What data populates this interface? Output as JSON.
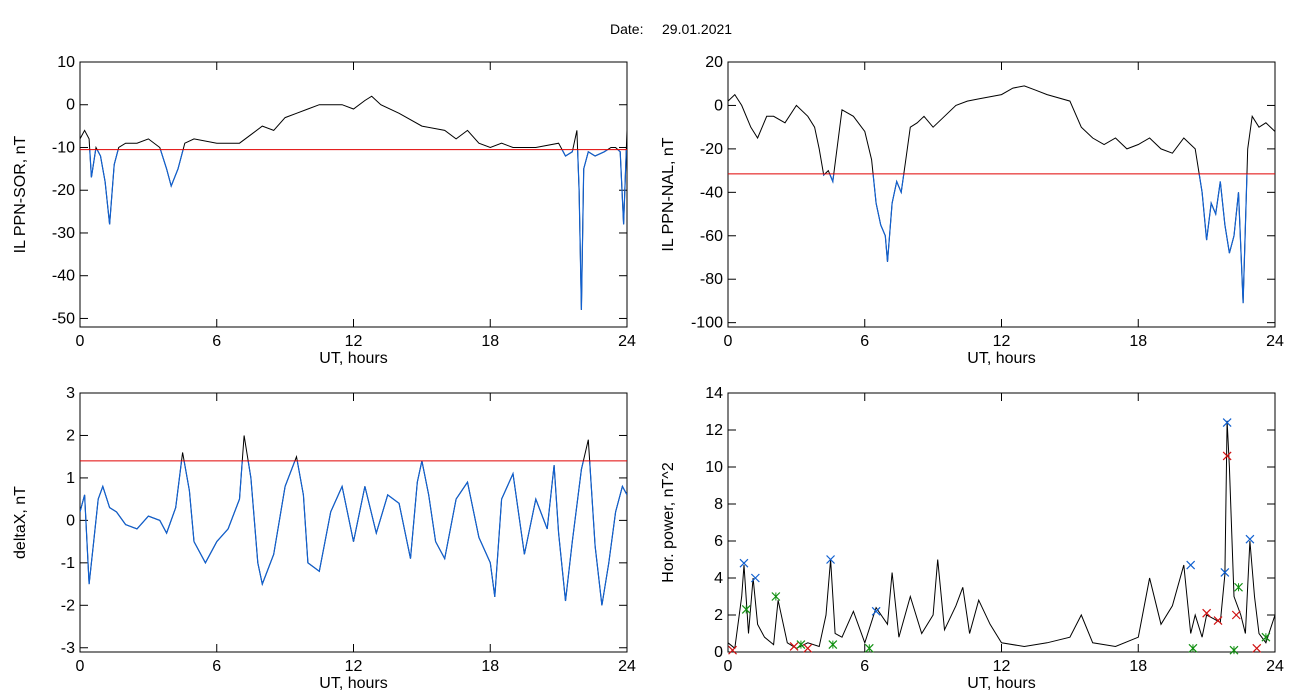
{
  "header": {
    "date_label": "Date:",
    "date_value": "29.01.2021"
  },
  "colors": {
    "trace": "#000000",
    "threshold": "#e00000",
    "highlight": "#1060d0",
    "marker_blue": "#1060d0",
    "marker_red": "#d01010",
    "marker_green": "#109010"
  },
  "chart_data": [
    {
      "type": "line",
      "xlabel": "UT, hours",
      "ylabel": "IL PPN-SOR, nT",
      "xlim": [
        0,
        24
      ],
      "ylim": [
        -52,
        10
      ],
      "xticks": [
        0,
        6,
        12,
        18,
        24
      ],
      "yticks": [
        10,
        0,
        -10,
        -20,
        -30,
        -40,
        -50
      ],
      "threshold": -10.5,
      "series": [
        {
          "x": [
            0,
            0.2,
            0.4,
            0.5,
            0.7,
            0.9,
            1.1,
            1.3,
            1.5,
            1.7,
            2.0,
            2.5,
            3.0,
            3.5,
            3.8,
            4.0,
            4.3,
            4.6,
            5.0,
            6.0,
            7.0,
            7.5,
            8.0,
            8.5,
            9.0,
            9.5,
            10.0,
            10.5,
            11.0,
            11.5,
            12.0,
            12.5,
            12.8,
            13.2,
            14.0,
            15.0,
            16.0,
            16.5,
            17.0,
            17.5,
            18.0,
            18.5,
            19.0,
            20.0,
            21.0,
            21.3,
            21.6,
            21.8,
            21.9,
            22.0,
            22.1,
            22.3,
            22.6,
            23.0,
            23.3,
            23.5,
            23.7,
            23.85,
            24.0
          ],
          "y": [
            -8,
            -6,
            -8,
            -17,
            -10,
            -12,
            -18,
            -28,
            -14,
            -10,
            -9,
            -9,
            -8,
            -10,
            -15,
            -19,
            -15,
            -9,
            -8,
            -9,
            -9,
            -7,
            -5,
            -6,
            -3,
            -2,
            -1,
            0,
            0,
            0,
            -1,
            1,
            2,
            0,
            -2,
            -5,
            -6,
            -8,
            -6,
            -9,
            -10,
            -9,
            -10,
            -10,
            -9,
            -12,
            -11,
            -6,
            -20,
            -48,
            -15,
            -11,
            -12,
            -11,
            -10,
            -10,
            -11,
            -28,
            -6
          ]
        }
      ]
    },
    {
      "type": "line",
      "xlabel": "UT, hours",
      "ylabel": "IL PPN-NAL, nT",
      "xlim": [
        0,
        24
      ],
      "ylim": [
        -102,
        20
      ],
      "xticks": [
        0,
        6,
        12,
        18,
        24
      ],
      "yticks": [
        20,
        0,
        -20,
        -40,
        -60,
        -80,
        -100
      ],
      "threshold": -31.5,
      "series": [
        {
          "x": [
            0,
            0.3,
            0.6,
            1.0,
            1.3,
            1.7,
            2.0,
            2.5,
            3.0,
            3.5,
            3.8,
            4.0,
            4.2,
            4.4,
            4.6,
            5.0,
            5.5,
            6.0,
            6.3,
            6.5,
            6.7,
            6.9,
            7.0,
            7.2,
            7.4,
            7.6,
            7.8,
            8.0,
            8.3,
            8.6,
            9.0,
            9.5,
            10.0,
            10.5,
            11.0,
            12.0,
            12.5,
            13.0,
            13.5,
            14.0,
            15.0,
            15.5,
            16.0,
            16.5,
            17.0,
            17.5,
            18.0,
            18.5,
            19.0,
            19.5,
            20.0,
            20.5,
            20.8,
            21.0,
            21.2,
            21.4,
            21.6,
            21.8,
            22.0,
            22.2,
            22.4,
            22.6,
            22.8,
            23.0,
            23.3,
            23.6,
            24.0
          ],
          "y": [
            2,
            5,
            0,
            -10,
            -15,
            -5,
            -5,
            -8,
            0,
            -5,
            -10,
            -20,
            -32,
            -30,
            -35,
            -2,
            -5,
            -12,
            -25,
            -45,
            -55,
            -60,
            -72,
            -45,
            -35,
            -40,
            -25,
            -10,
            -8,
            -5,
            -10,
            -5,
            0,
            2,
            3,
            5,
            8,
            9,
            7,
            5,
            2,
            -10,
            -15,
            -18,
            -15,
            -20,
            -18,
            -15,
            -20,
            -22,
            -15,
            -20,
            -40,
            -62,
            -45,
            -50,
            -35,
            -55,
            -68,
            -60,
            -40,
            -91,
            -20,
            -5,
            -10,
            -8,
            -12
          ]
        }
      ]
    },
    {
      "type": "line",
      "xlabel": "UT, hours",
      "ylabel": "deltaX, nT",
      "xlim": [
        0,
        24
      ],
      "ylim": [
        -3.1,
        3.0
      ],
      "xticks": [
        0,
        6,
        12,
        18,
        24
      ],
      "yticks": [
        3,
        2,
        1,
        0,
        -1,
        -2,
        -3
      ],
      "threshold": 1.4,
      "series": [
        {
          "x": [
            0,
            0.2,
            0.4,
            0.6,
            0.8,
            1.0,
            1.3,
            1.6,
            2.0,
            2.5,
            3.0,
            3.5,
            3.8,
            4.2,
            4.5,
            4.8,
            5.0,
            5.5,
            6.0,
            6.5,
            7.0,
            7.2,
            7.5,
            7.8,
            8.0,
            8.5,
            9.0,
            9.5,
            9.8,
            10.0,
            10.5,
            11.0,
            11.5,
            12.0,
            12.5,
            13.0,
            13.5,
            14.0,
            14.5,
            14.8,
            15.0,
            15.3,
            15.6,
            16.0,
            16.5,
            17.0,
            17.5,
            18.0,
            18.2,
            18.5,
            19.0,
            19.5,
            20.0,
            20.5,
            20.8,
            21.0,
            21.3,
            21.6,
            22.0,
            22.3,
            22.6,
            22.9,
            23.2,
            23.5,
            23.8,
            24.0
          ],
          "y": [
            0.2,
            0.6,
            -1.5,
            -0.5,
            0.5,
            0.8,
            0.3,
            0.2,
            -0.1,
            -0.2,
            0.1,
            0,
            -0.3,
            0.3,
            1.6,
            0.7,
            -0.5,
            -1.0,
            -0.5,
            -0.2,
            0.5,
            2.0,
            1.0,
            -1.0,
            -1.5,
            -0.8,
            0.8,
            1.5,
            0.6,
            -1.0,
            -1.2,
            0.2,
            0.8,
            -0.5,
            0.8,
            -0.3,
            0.6,
            0.4,
            -0.9,
            0.9,
            1.4,
            0.6,
            -0.5,
            -0.9,
            0.5,
            0.9,
            -0.4,
            -1.0,
            -1.8,
            0.5,
            1.1,
            -0.8,
            0.5,
            -0.2,
            1.3,
            -0.3,
            -1.9,
            -0.5,
            1.2,
            1.9,
            -0.6,
            -2.0,
            -1.0,
            0.2,
            0.8,
            0.6
          ]
        }
      ]
    },
    {
      "type": "line",
      "xlabel": "UT, hours",
      "ylabel": "Hor. power, nT^2",
      "xlim": [
        0,
        24
      ],
      "ylim": [
        0,
        14
      ],
      "xticks": [
        0,
        6,
        12,
        18,
        24
      ],
      "yticks": [
        14,
        12,
        10,
        8,
        6,
        4,
        2,
        0
      ],
      "series": [
        {
          "x": [
            0,
            0.3,
            0.6,
            0.7,
            0.9,
            1.1,
            1.3,
            1.6,
            2.0,
            2.2,
            2.6,
            3.0,
            3.5,
            4.0,
            4.3,
            4.5,
            4.7,
            5.0,
            5.5,
            6.0,
            6.5,
            7.0,
            7.2,
            7.5,
            8.0,
            8.5,
            9.0,
            9.2,
            9.5,
            10.0,
            10.3,
            10.6,
            11.0,
            11.5,
            12.0,
            13.0,
            14.0,
            15.0,
            15.5,
            16.0,
            17.0,
            18.0,
            18.5,
            19.0,
            19.5,
            20.0,
            20.3,
            20.5,
            20.8,
            21.0,
            21.3,
            21.6,
            21.8,
            21.9,
            22.0,
            22.2,
            22.5,
            22.7,
            22.9,
            23.1,
            23.3,
            23.6,
            24.0
          ],
          "y": [
            0.5,
            0.2,
            3.0,
            4.7,
            1.0,
            4.0,
            1.5,
            0.8,
            0.4,
            2.8,
            0.5,
            0.2,
            0.5,
            0.3,
            2.0,
            5.0,
            1.0,
            0.8,
            2.2,
            0.5,
            2.4,
            1.5,
            4.3,
            0.8,
            3.0,
            1.0,
            2.0,
            5.0,
            1.2,
            2.5,
            3.5,
            1.0,
            2.8,
            1.5,
            0.5,
            0.3,
            0.5,
            0.8,
            2.0,
            0.5,
            0.3,
            0.8,
            4.0,
            1.5,
            2.5,
            4.7,
            1.0,
            2.0,
            0.8,
            2.0,
            1.8,
            1.6,
            4.2,
            12.5,
            10.0,
            3.0,
            2.0,
            1.0,
            6.0,
            3.0,
            1.0,
            0.5,
            2.0
          ]
        }
      ],
      "markers": {
        "blue": [
          [
            0.7,
            4.8
          ],
          [
            1.2,
            4.0
          ],
          [
            4.5,
            5.0
          ],
          [
            6.5,
            2.2
          ],
          [
            20.3,
            4.7
          ],
          [
            21.9,
            12.4
          ],
          [
            21.8,
            4.3
          ],
          [
            22.9,
            6.1
          ]
        ],
        "red": [
          [
            0.2,
            0.1
          ],
          [
            2.9,
            0.3
          ],
          [
            3.5,
            0.2
          ],
          [
            21.0,
            2.1
          ],
          [
            21.5,
            1.7
          ],
          [
            21.9,
            10.6
          ],
          [
            22.3,
            2.0
          ],
          [
            23.2,
            0.2
          ]
        ],
        "green": [
          [
            0.8,
            2.3
          ],
          [
            2.1,
            3.0
          ],
          [
            3.2,
            0.4
          ],
          [
            4.6,
            0.4
          ],
          [
            6.2,
            0.2
          ],
          [
            20.4,
            0.2
          ],
          [
            22.2,
            0.1
          ],
          [
            22.4,
            3.5
          ],
          [
            23.6,
            0.8
          ]
        ]
      }
    }
  ]
}
